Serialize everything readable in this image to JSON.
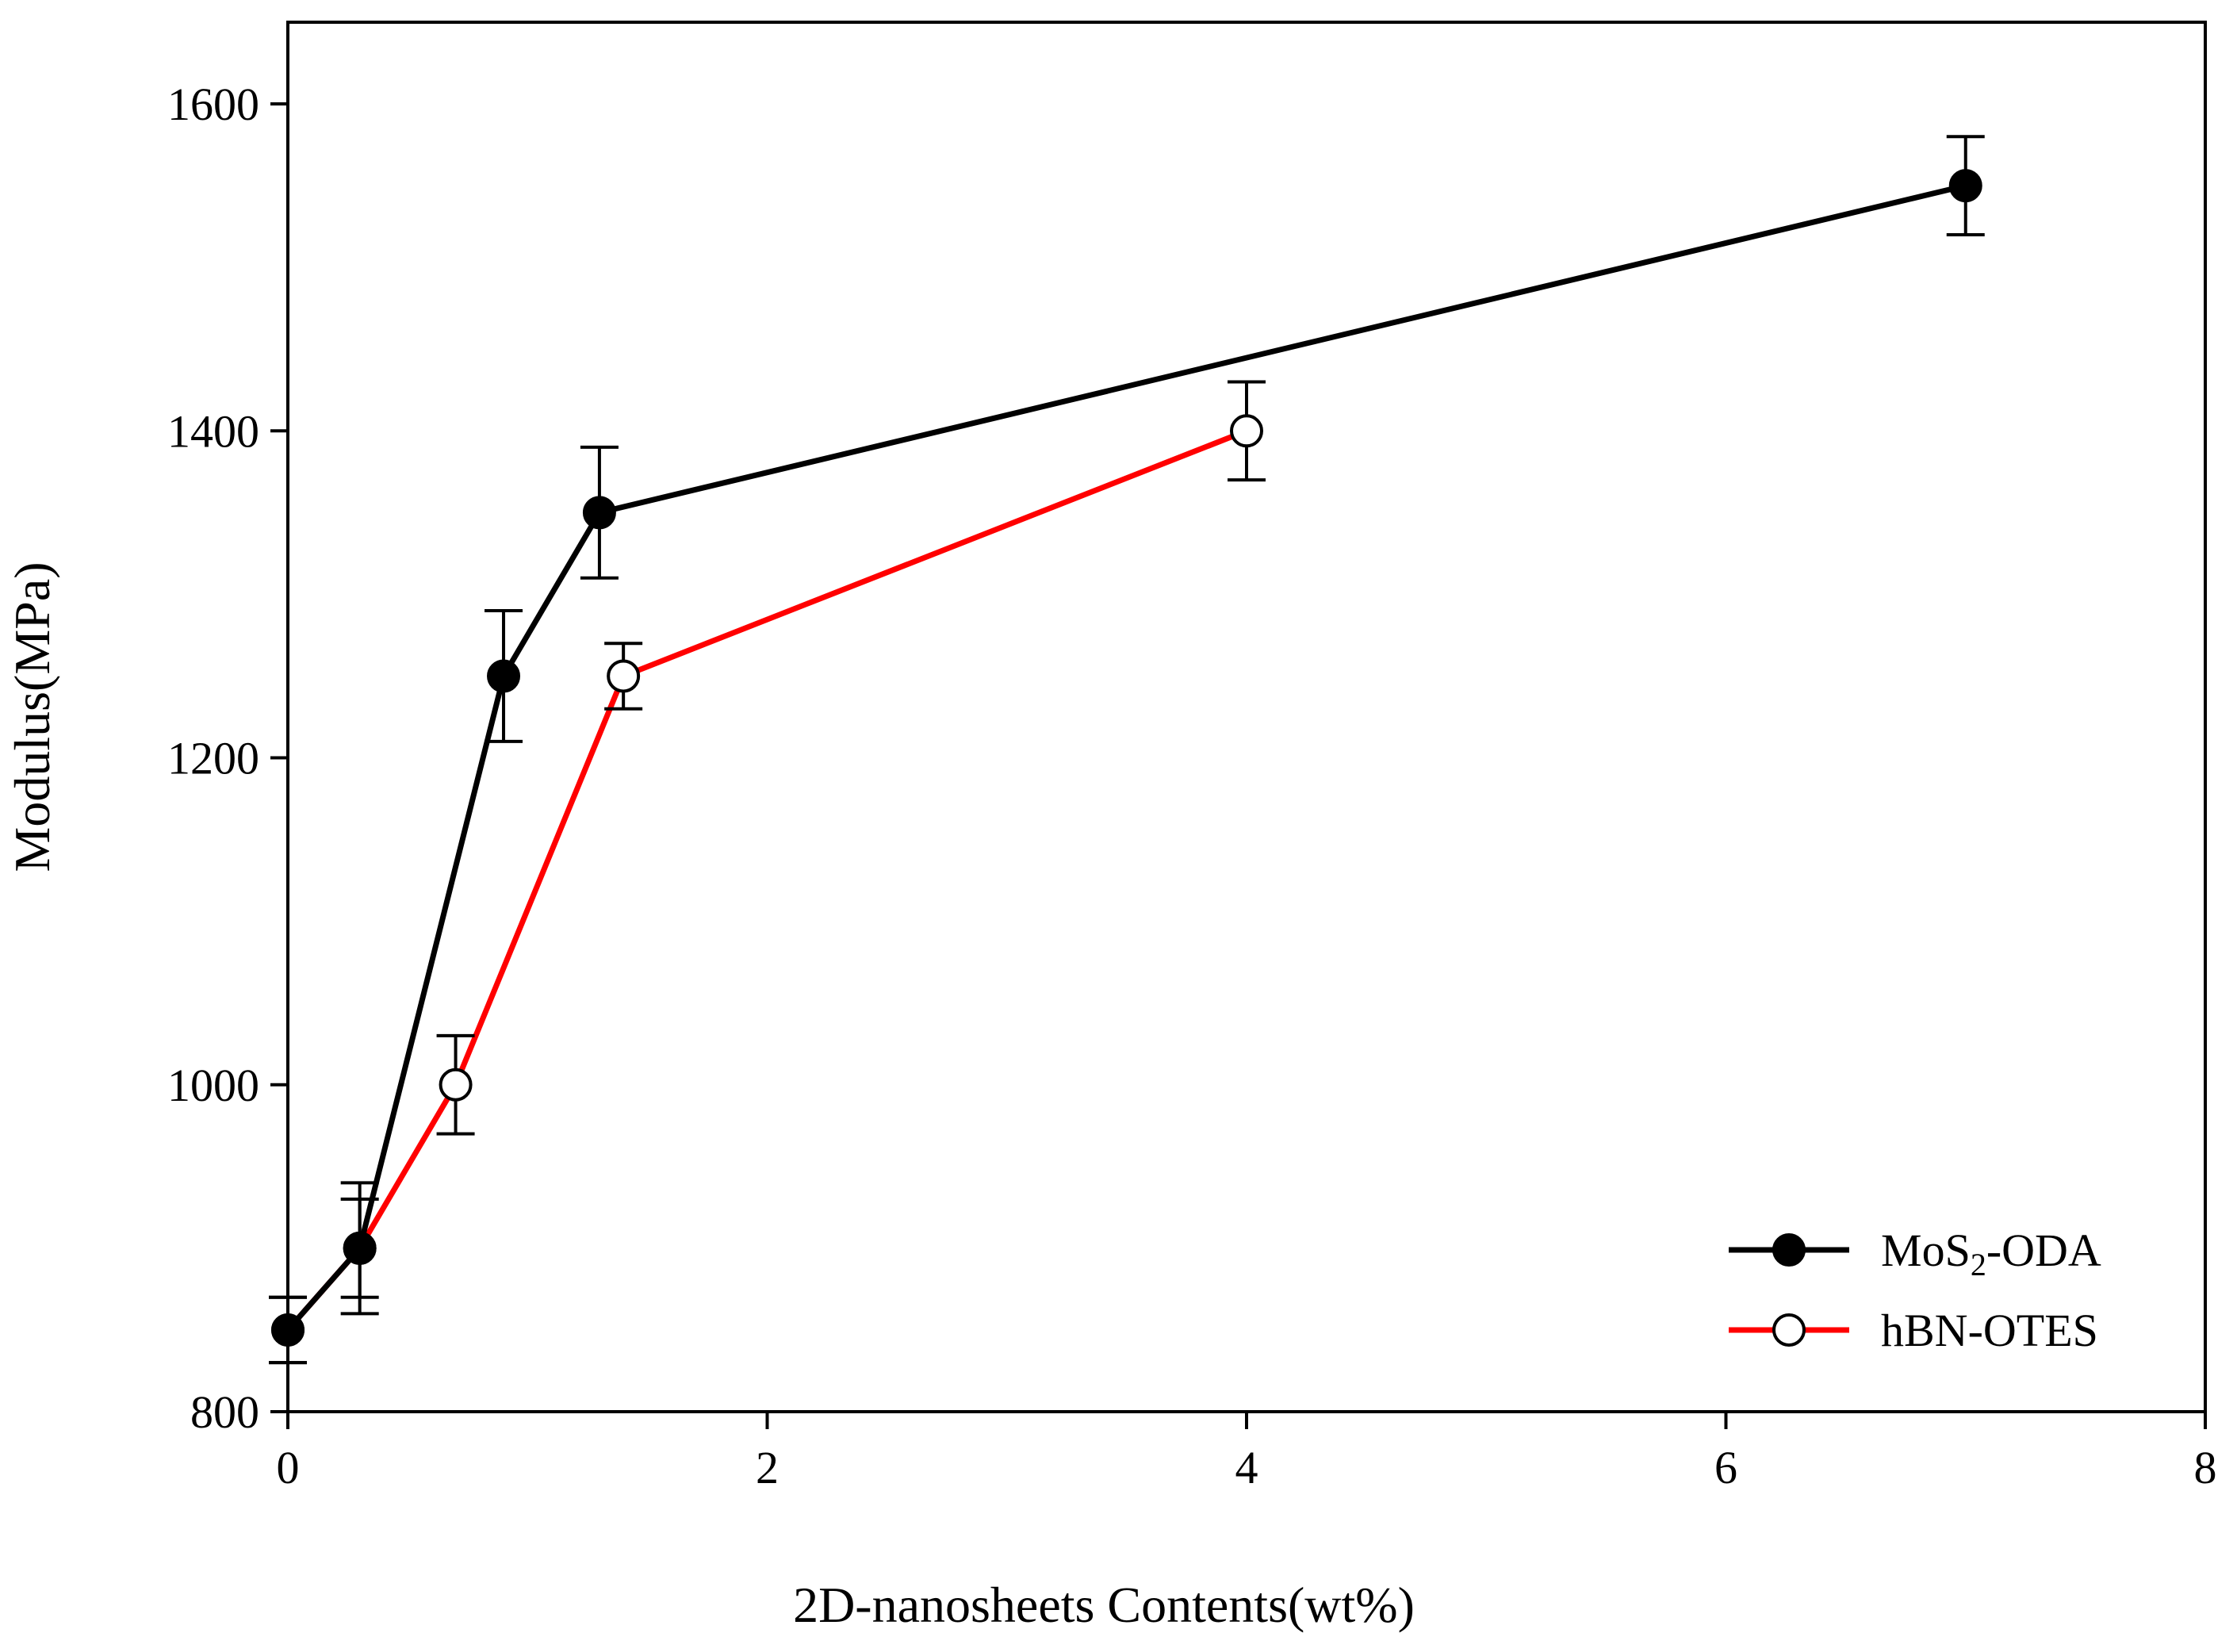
{
  "chart_data": {
    "type": "line",
    "title": "",
    "xlabel": "2D-nanosheets Contents(wt%)",
    "ylabel": "Modulus(MPa)",
    "xlim": [
      0,
      8
    ],
    "ylim": [
      800,
      1650
    ],
    "xticks": [
      0,
      2,
      4,
      6,
      8
    ],
    "yticks": [
      800,
      1000,
      1200,
      1400,
      1600
    ],
    "xtick_labels": [
      "0",
      "2",
      "4",
      "6",
      "8"
    ],
    "ytick_labels": [
      "800",
      "1000",
      "1200",
      "1400",
      "1600"
    ],
    "grid": false,
    "legend_position": "bottom-right",
    "series": [
      {
        "name_main": "MoS",
        "name_sub": "2",
        "name_rest": "-ODA",
        "color": "#000000",
        "marker": "filled-circle",
        "x": [
          0,
          0.3,
          0.9,
          1.3,
          7
        ],
        "y": [
          850,
          900,
          1250,
          1350,
          1550
        ],
        "err": [
          20,
          40,
          40,
          40,
          30
        ]
      },
      {
        "name_main": "hBN-OTES",
        "name_sub": "",
        "name_rest": "",
        "color": "#ff0000",
        "marker": "open-circle",
        "x": [
          0,
          0.3,
          0.7,
          1.4,
          4
        ],
        "y": [
          850,
          900,
          1000,
          1250,
          1400
        ],
        "err": [
          20,
          30,
          30,
          20,
          30
        ]
      }
    ]
  }
}
